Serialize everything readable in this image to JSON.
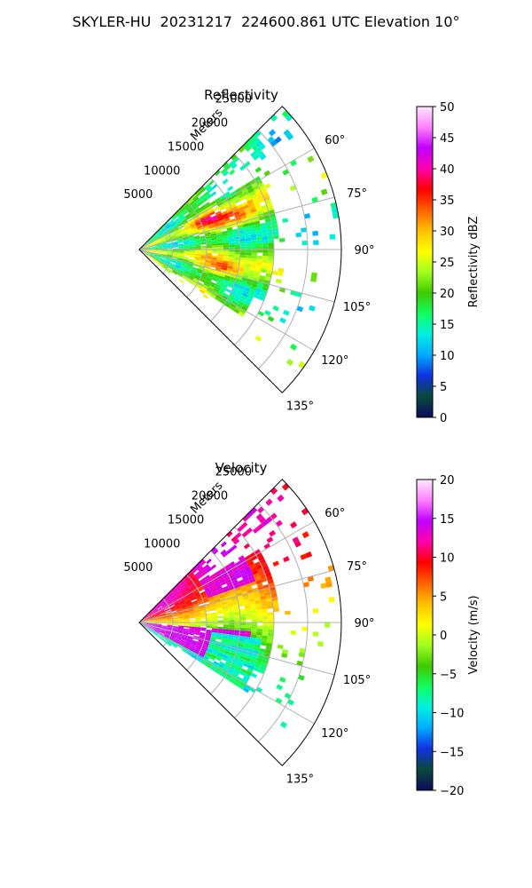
{
  "suptitle": "SKYLER-HU  20231217  224600.861 UTC Elevation 10°",
  "chart_data": [
    {
      "type": "heatmap",
      "subtype": "polar-ppi-sector",
      "title": "Reflectivity",
      "radial_label": "Meters",
      "radial_ticks": [
        5000,
        10000,
        15000,
        20000,
        25000
      ],
      "radial_tick_labels": [
        "5000",
        "10000",
        "15000",
        "20000",
        "25000"
      ],
      "rmax": 30000,
      "azimuth_range_deg": [
        45,
        135
      ],
      "azimuth_ticks_deg": [
        60,
        75,
        90,
        105,
        120,
        135
      ],
      "azimuth_tick_labels": [
        "60°",
        "75°",
        "90°",
        "105°",
        "120°",
        "135°"
      ],
      "colorbar": {
        "label": "Reflectivity dBZ",
        "range": [
          0,
          50
        ],
        "ticks": [
          0,
          5,
          10,
          15,
          20,
          25,
          30,
          35,
          40,
          45,
          50
        ],
        "tick_labels": [
          "0",
          "5",
          "10",
          "15",
          "20",
          "25",
          "30",
          "35",
          "40",
          "45",
          "50"
        ]
      }
    },
    {
      "type": "heatmap",
      "subtype": "polar-ppi-sector",
      "title": "Velocity",
      "radial_label": "Meters",
      "radial_ticks": [
        5000,
        10000,
        15000,
        20000,
        25000
      ],
      "radial_tick_labels": [
        "5000",
        "10000",
        "15000",
        "20000",
        "25000"
      ],
      "rmax": 30000,
      "azimuth_range_deg": [
        45,
        135
      ],
      "azimuth_ticks_deg": [
        60,
        75,
        90,
        105,
        120,
        135
      ],
      "azimuth_tick_labels": [
        "60°",
        "75°",
        "90°",
        "105°",
        "120°",
        "135°"
      ],
      "colorbar": {
        "label": "Velocity (m/s)",
        "range": [
          -20,
          20
        ],
        "ticks": [
          -20,
          -15,
          -10,
          -5,
          0,
          5,
          10,
          15,
          20
        ],
        "tick_labels": [
          "−20",
          "−15",
          "−10",
          "−5",
          "0",
          "5",
          "10",
          "15",
          "20"
        ]
      }
    }
  ],
  "colormap_stops": [
    "#0b0b5e",
    "#0a4a3a",
    "#1030e0",
    "#00aaff",
    "#00f0e0",
    "#10ff60",
    "#40c800",
    "#a0ff20",
    "#ffff00",
    "#ffc000",
    "#ff6000",
    "#ff0000",
    "#ff00aa",
    "#c000ff",
    "#ff80ff",
    "#ffe8ff"
  ]
}
